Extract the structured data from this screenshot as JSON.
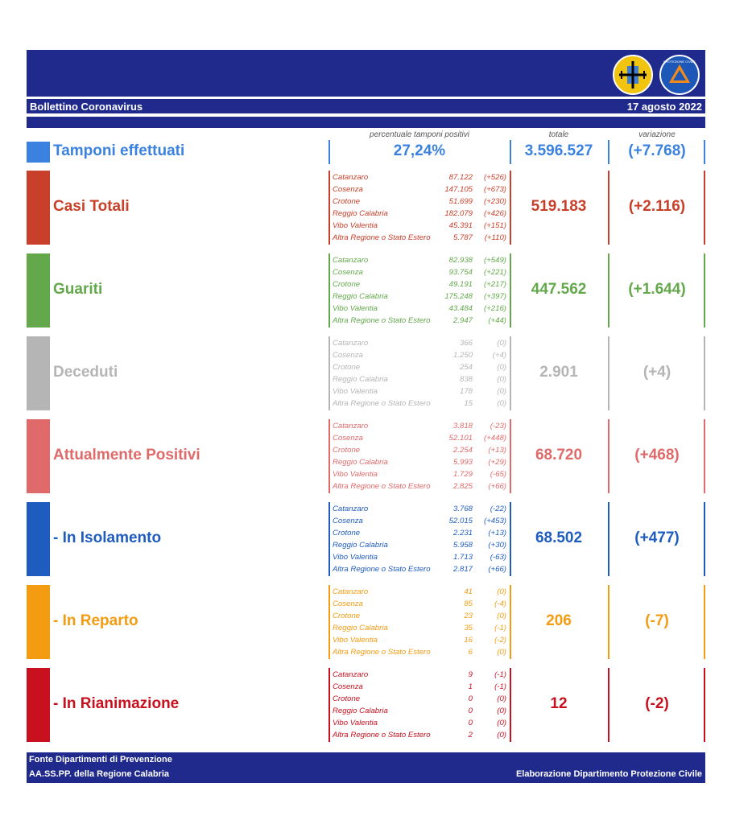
{
  "header": {
    "title": "Bollettino Coronavirus",
    "date": "17 agosto 2022",
    "logo_left": "regione-calabria-crest",
    "logo_right": "protezione-civile-logo",
    "logo_right_text": "PROTEZIONE CIVILE"
  },
  "column_headers": {
    "percent": "percentuale tamponi positivi",
    "total": "totale",
    "change": "variazione"
  },
  "tamponi": {
    "label": "Tamponi effettuati",
    "percent": "27,24%",
    "total": "3.596.527",
    "change": "(+7.768)",
    "color": "#3b82e0"
  },
  "sections": [
    {
      "label": "Casi Totali",
      "color": "#c8402a",
      "total": "519.183",
      "change": "(+2.116)",
      "rows": [
        {
          "name": "Catanzaro",
          "value": "87.122",
          "delta": "(+526)"
        },
        {
          "name": "Cosenza",
          "value": "147.105",
          "delta": "(+673)"
        },
        {
          "name": "Crotone",
          "value": "51.699",
          "delta": "(+230)"
        },
        {
          "name": "Reggio Calabria",
          "value": "182.079",
          "delta": "(+426)"
        },
        {
          "name": "Vibo Valentia",
          "value": "45.391",
          "delta": "(+151)"
        },
        {
          "name": "Altra Regione o Stato Estero",
          "value": "5.787",
          "delta": "(+110)"
        }
      ]
    },
    {
      "label": "Guariti",
      "color": "#63a84a",
      "total": "447.562",
      "change": "(+1.644)",
      "rows": [
        {
          "name": "Catanzaro",
          "value": "82.938",
          "delta": "(+549)"
        },
        {
          "name": "Cosenza",
          "value": "93.754",
          "delta": "(+221)"
        },
        {
          "name": "Crotone",
          "value": "49.191",
          "delta": "(+217)"
        },
        {
          "name": "Reggio Calabria",
          "value": "175.248",
          "delta": "(+397)"
        },
        {
          "name": "Vibo Valentia",
          "value": "43.484",
          "delta": "(+216)"
        },
        {
          "name": "Altra Regione o Stato Estero",
          "value": "2.947",
          "delta": "(+44)"
        }
      ]
    },
    {
      "label": "Deceduti",
      "color": "#b5b5b5",
      "total": "2.901",
      "change": "(+4)",
      "rows": [
        {
          "name": "Catanzaro",
          "value": "366",
          "delta": "(0)"
        },
        {
          "name": "Cosenza",
          "value": "1.250",
          "delta": "(+4)"
        },
        {
          "name": "Crotone",
          "value": "254",
          "delta": "(0)"
        },
        {
          "name": "Reggio Calabria",
          "value": "838",
          "delta": "(0)"
        },
        {
          "name": "Vibo Valentia",
          "value": "178",
          "delta": "(0)"
        },
        {
          "name": "Altra Regione o Stato Estero",
          "value": "15",
          "delta": "(0)"
        }
      ]
    },
    {
      "label": "Attualmente Positivi",
      "color": "#e06a6a",
      "total": "68.720",
      "change": "(+468)",
      "rows": [
        {
          "name": "Catanzaro",
          "value": "3.818",
          "delta": "(-23)"
        },
        {
          "name": "Cosenza",
          "value": "52.101",
          "delta": "(+448)"
        },
        {
          "name": "Crotone",
          "value": "2.254",
          "delta": "(+13)"
        },
        {
          "name": "Reggio Calabria",
          "value": "5.993",
          "delta": "(+29)"
        },
        {
          "name": "Vibo Valentia",
          "value": "1.729",
          "delta": "(-65)"
        },
        {
          "name": "Altra Regione o Stato Estero",
          "value": "2.825",
          "delta": "(+66)"
        }
      ]
    },
    {
      "label": "- In Isolamento",
      "color": "#1f5cc0",
      "total": "68.502",
      "change": "(+477)",
      "rows": [
        {
          "name": "Catanzaro",
          "value": "3.768",
          "delta": "(-22)"
        },
        {
          "name": "Cosenza",
          "value": "52.015",
          "delta": "(+453)"
        },
        {
          "name": "Crotone",
          "value": "2.231",
          "delta": "(+13)"
        },
        {
          "name": "Reggio Calabria",
          "value": "5.958",
          "delta": "(+30)"
        },
        {
          "name": "Vibo Valentia",
          "value": "1.713",
          "delta": "(-63)"
        },
        {
          "name": "Altra Regione o Stato Estero",
          "value": "2.817",
          "delta": "(+66)"
        }
      ]
    },
    {
      "label": "- In Reparto",
      "color": "#f39c12",
      "total": "206",
      "change": "(-7)",
      "rows": [
        {
          "name": "Catanzaro",
          "value": "41",
          "delta": "(0)"
        },
        {
          "name": "Cosenza",
          "value": "85",
          "delta": "(-4)"
        },
        {
          "name": "Crotone",
          "value": "23",
          "delta": "(0)"
        },
        {
          "name": "Reggio Calabria",
          "value": "35",
          "delta": "(-1)"
        },
        {
          "name": "Vibo Valentia",
          "value": "16",
          "delta": "(-2)"
        },
        {
          "name": "Altra Regione o Stato Estero",
          "value": "6",
          "delta": "(0)"
        }
      ]
    },
    {
      "label": "- In Rianimazione",
      "color": "#c8101e",
      "total": "12",
      "change": "(-2)",
      "rows": [
        {
          "name": "Catanzaro",
          "value": "9",
          "delta": "(-1)"
        },
        {
          "name": "Cosenza",
          "value": "1",
          "delta": "(-1)"
        },
        {
          "name": "Crotone",
          "value": "0",
          "delta": "(0)"
        },
        {
          "name": "Reggio Calabria",
          "value": "0",
          "delta": "(0)"
        },
        {
          "name": "Vibo Valentia",
          "value": "0",
          "delta": "(0)"
        },
        {
          "name": "Altra Regione o Stato Estero",
          "value": "2",
          "delta": "(0)"
        }
      ]
    }
  ],
  "footer": {
    "line1": "Fonte Dipartimenti di Prevenzione",
    "line2": "AA.SS.PP. della Regione Calabria",
    "right": "Elaborazione Dipartimento Protezione Civile"
  }
}
